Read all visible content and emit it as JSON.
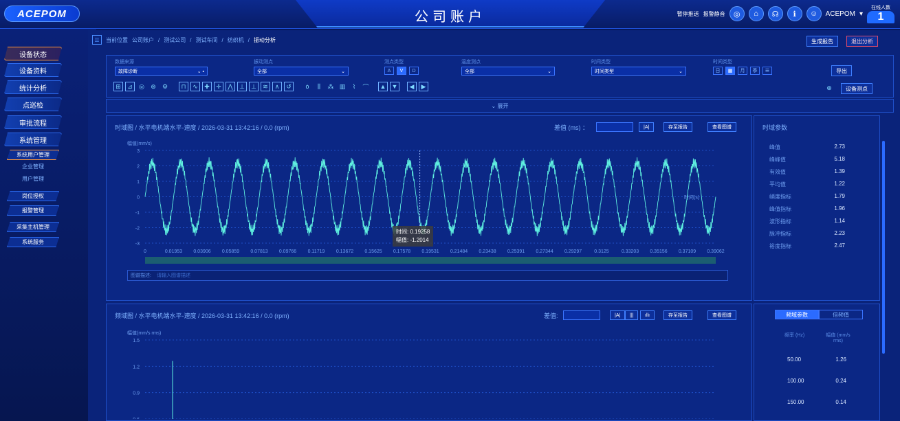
{
  "header": {
    "logo": "ACEPOM",
    "title": "公司账户",
    "links": [
      "暂停推送",
      "报警静音"
    ],
    "user": "ACEPOM",
    "online_label": "在线人数",
    "online_count": "1"
  },
  "sidebar": {
    "items": [
      "设备状态",
      "设备资料",
      "统计分析",
      "点巡检",
      "审批流程",
      "系统管理"
    ],
    "sub_group": "系统用户管理",
    "sub_items": [
      "企业管理",
      "用户管理"
    ],
    "more_items": [
      "岗位授权",
      "报警管理",
      "采集主机管理",
      "系统服务"
    ]
  },
  "breadcrumb": [
    "当前位置",
    "公司账户",
    "测试公司",
    "测试车间",
    "纺织机",
    "振动分析"
  ],
  "top_buttons": {
    "report": "生成报告",
    "exit": "退出分析"
  },
  "filters": {
    "labels": [
      "数据来源",
      "振动测点",
      "测点类型",
      "温度测点",
      "时间类型",
      "时间类型"
    ],
    "source_value": "故障诊断",
    "vib_value": "全部",
    "type_chips": [
      "A",
      "V",
      "D"
    ],
    "temp_value": "全部",
    "time_value": "时间类型",
    "export": "导出",
    "device_points": "设备测点"
  },
  "expand_label": "展开",
  "time_panel": {
    "title": "时域图 / 水平电机端水平-速度 / 2026-03-31 13:42:16 / 0.0 (rpm)",
    "diff_label": "差值 (ms) ：",
    "save": "存至报告",
    "view": "查看图谱",
    "ylabel": "幅值(mm/s)",
    "xlabel": "时间(s)",
    "tooltip_time": "时间: 0.19258",
    "tooltip_amp": "幅值: -1.2014",
    "desc_label": "图谱描述:",
    "desc_placeholder": "请输入图谱描述"
  },
  "time_params": {
    "title": "时域参数",
    "rows": [
      {
        "name": "峰值",
        "value": "2.73"
      },
      {
        "name": "峰峰值",
        "value": "5.18"
      },
      {
        "name": "有效值",
        "value": "1.39"
      },
      {
        "name": "平均值",
        "value": "1.22"
      },
      {
        "name": "峭度指标",
        "value": "1.79"
      },
      {
        "name": "峰值指标",
        "value": "1.96"
      },
      {
        "name": "波形指标",
        "value": "1.14"
      },
      {
        "name": "脉冲指标",
        "value": "2.23"
      },
      {
        "name": "裕度指标",
        "value": "2.47"
      }
    ]
  },
  "freq_panel": {
    "title": "频域图 / 水平电机端水平-速度 / 2026-03-31 13:42:16 / 0.0 (rpm)",
    "diff_label": "差值:",
    "save": "存至报告",
    "view": "查看图谱",
    "ylabel": "幅值(mm/s rms)"
  },
  "freq_params": {
    "tabs": [
      "频域参数",
      "倍频值"
    ],
    "col1": "频率 (Hz)",
    "col2": "幅值 (mm/s rms)",
    "rows": [
      {
        "f": "50.00",
        "a": "1.26"
      },
      {
        "f": "100.00",
        "a": "0.24"
      },
      {
        "f": "150.00",
        "a": "0.14"
      }
    ]
  },
  "chart_data": [
    {
      "type": "line",
      "title": "时域图 / 水平电机端水平-速度 / 2026-03-31 13:42:16 / 0.0 (rpm)",
      "xlabel": "时间(s)",
      "ylabel": "幅值(mm/s)",
      "x_ticks": [
        "0",
        "0.01953",
        "0.03906",
        "0.05859",
        "0.07813",
        "0.09766",
        "0.11719",
        "0.13672",
        "0.15625",
        "0.17578",
        "0.19531",
        "0.21484",
        "0.23438",
        "0.25391",
        "0.27344",
        "0.29297",
        "0.3125",
        "0.33203",
        "0.35156",
        "0.37109",
        "0.39062"
      ],
      "y_ticks": [
        "3",
        "2",
        "1",
        "0",
        "-1",
        "-2",
        "-3"
      ],
      "xlim": [
        0,
        0.4
      ],
      "ylim": [
        -3,
        3
      ],
      "signal": {
        "frequency_hz": 50,
        "amplitude": 2.2,
        "noise_hz": 1000,
        "noise_amp": 0.35,
        "cycles": 20
      },
      "tooltip": {
        "x": 0.19258,
        "y": -1.2014
      }
    },
    {
      "type": "line",
      "title": "频域图 / 水平电机端水平-速度 / 2026-03-31 13:42:16 / 0.0 (rpm)",
      "ylabel": "幅值(mm/s rms)",
      "y_ticks": [
        "1.5",
        "1.2",
        "0.9",
        "0.6"
      ],
      "ylim": [
        0.6,
        1.5
      ],
      "peaks": [
        {
          "x": 50,
          "y": 1.26
        }
      ]
    }
  ]
}
